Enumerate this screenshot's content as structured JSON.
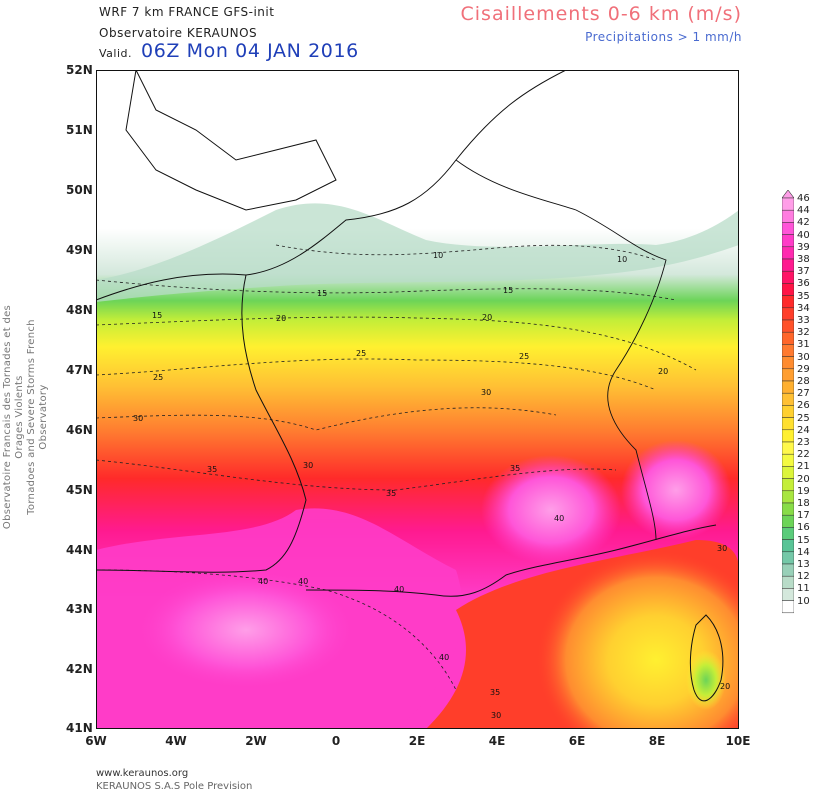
{
  "header": {
    "model": "WRF 7 km FRANCE  GFS-init",
    "org": "Observatoire KERAUNOS",
    "valid_label": "Valid.",
    "valid_time": "06Z Mon 04 JAN 2016",
    "parameter": "Cisaillements 0-6 km (m/s)",
    "precip_note": "Precipitations > 1 mm/h"
  },
  "side_text": {
    "line1": "Observatoire Francais des Tornades et des Orages Violents",
    "line2": "Tornadoes and Severe Storms French Observatory"
  },
  "footer": {
    "website": "www.keraunos.org",
    "company": "KERAUNOS S.A.S Pole Prevision"
  },
  "axes": {
    "lat_ticks": [
      "52N",
      "51N",
      "50N",
      "49N",
      "48N",
      "47N",
      "46N",
      "45N",
      "44N",
      "43N",
      "42N",
      "41N"
    ],
    "lon_ticks": [
      "6W",
      "4W",
      "2W",
      "0",
      "2E",
      "4E",
      "6E",
      "8E",
      "10E"
    ]
  },
  "contour_labels": [
    "10",
    "10",
    "15",
    "15",
    "15",
    "20",
    "20",
    "20",
    "25",
    "25",
    "25",
    "30",
    "30",
    "30",
    "35",
    "35",
    "35",
    "40",
    "40",
    "40",
    "40",
    "40",
    "30",
    "35",
    "30",
    "20"
  ],
  "colorbar": {
    "labels": [
      "46",
      "44",
      "42",
      "40",
      "39",
      "38",
      "37",
      "36",
      "35",
      "34",
      "33",
      "32",
      "31",
      "30",
      "29",
      "28",
      "27",
      "26",
      "25",
      "24",
      "23",
      "22",
      "21",
      "20",
      "19",
      "18",
      "17",
      "16",
      "15",
      "14",
      "13",
      "12",
      "11",
      "10"
    ],
    "colors": [
      "#ff9ee8",
      "#ff7ce0",
      "#ff55d8",
      "#ff3cc8",
      "#ff2ab0",
      "#ff1a90",
      "#ff1466",
      "#ff1446",
      "#ff2a2a",
      "#ff3e2a",
      "#ff522a",
      "#ff662a",
      "#ff7a30",
      "#ff8c30",
      "#ff9e30",
      "#ffb030",
      "#ffc034",
      "#ffd030",
      "#ffe030",
      "#fff030",
      "#fff84a",
      "#f4fa40",
      "#dcf53a",
      "#c4ee38",
      "#a8e640",
      "#88dc48",
      "#6cd458",
      "#5acc7a",
      "#58c496",
      "#74c8a8",
      "#98d0b8",
      "#b8dcc8",
      "#d4e8dc",
      "#ffffff"
    ]
  }
}
